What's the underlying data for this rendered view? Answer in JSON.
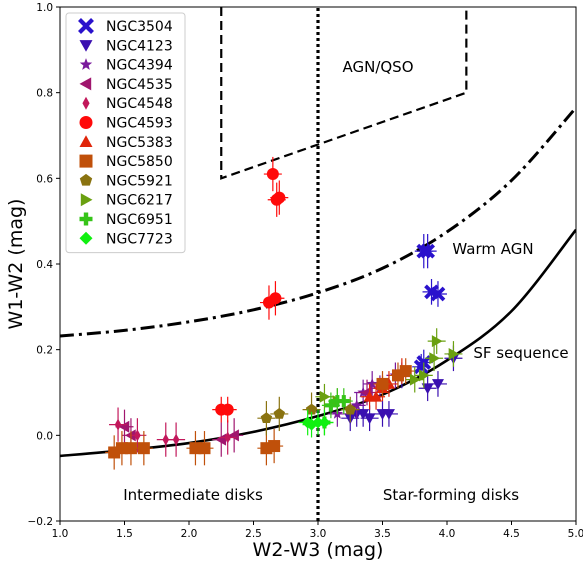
{
  "chart_data": {
    "type": "scatter",
    "xlabel": "W2-W3 (mag)",
    "ylabel": "W1-W2 (mag)",
    "xlim": [
      1.0,
      5.0
    ],
    "ylim": [
      -0.2,
      1.0
    ],
    "xticks": [
      1.0,
      1.5,
      2.0,
      2.5,
      3.0,
      3.5,
      4.0,
      4.5,
      5.0
    ],
    "yticks": [
      -0.2,
      0.0,
      0.2,
      0.4,
      0.6,
      0.8,
      1.0
    ],
    "xtick_labels": [
      "1.0",
      "1.5",
      "2.0",
      "2.5",
      "3.0",
      "3.5",
      "4.0",
      "4.5",
      "5.0"
    ],
    "ytick_labels": [
      "−0.2",
      "0.0",
      "0.2",
      "0.4",
      "0.6",
      "0.8",
      "1.0"
    ],
    "grid": false,
    "legend_position": "top-left",
    "annotations": {
      "agn_qso": "AGN/QSO",
      "warm_agn": "Warm AGN",
      "sf_sequence": "SF sequence",
      "intermediate_disks": "Intermediate disks",
      "star_forming_disks": "Star-forming disks"
    },
    "lines": [
      {
        "role": "agn-qso-wedge",
        "style": "dashed",
        "color": "#000000",
        "points": [
          [
            2.25,
            1.0
          ],
          [
            2.25,
            0.6
          ],
          [
            4.15,
            0.8
          ],
          [
            4.15,
            1.0
          ]
        ]
      },
      {
        "role": "warm-agn-boundary",
        "style": "dashdot",
        "color": "#000000",
        "points": [
          [
            1.0,
            0.232
          ],
          [
            1.5,
            0.245
          ],
          [
            2.0,
            0.265
          ],
          [
            2.5,
            0.293
          ],
          [
            3.0,
            0.333
          ],
          [
            3.5,
            0.39
          ],
          [
            4.0,
            0.475
          ],
          [
            4.5,
            0.595
          ],
          [
            5.0,
            0.765
          ]
        ]
      },
      {
        "role": "sf-sequence",
        "style": "solid",
        "color": "#000000",
        "points": [
          [
            1.0,
            -0.048
          ],
          [
            1.5,
            -0.035
          ],
          [
            2.0,
            -0.018
          ],
          [
            2.5,
            0.008
          ],
          [
            3.0,
            0.045
          ],
          [
            3.5,
            0.095
          ],
          [
            4.0,
            0.175
          ],
          [
            4.5,
            0.29
          ],
          [
            5.0,
            0.48
          ]
        ]
      },
      {
        "role": "disk-divider",
        "style": "dotted",
        "color": "#000000",
        "points": [
          [
            3.0,
            -0.2
          ],
          [
            3.0,
            1.0
          ]
        ]
      }
    ],
    "series": [
      {
        "name": "NGC3504",
        "marker": "x",
        "color": "#2a12cc",
        "points": [
          [
            3.82,
            0.43,
            0.04
          ],
          [
            3.85,
            0.43,
            0.04
          ],
          [
            3.88,
            0.335,
            0.03
          ],
          [
            3.93,
            0.33,
            0.03
          ],
          [
            3.8,
            0.16,
            0.03
          ],
          [
            3.82,
            0.17,
            0.03
          ]
        ]
      },
      {
        "name": "NGC4123",
        "marker": "triangle-down",
        "color": "#3a0fb0",
        "points": [
          [
            3.25,
            0.04,
            0.03
          ],
          [
            3.3,
            0.05,
            0.03
          ],
          [
            3.35,
            0.05,
            0.03
          ],
          [
            3.4,
            0.04,
            0.03
          ],
          [
            3.5,
            0.05,
            0.03
          ],
          [
            3.55,
            0.05,
            0.03
          ],
          [
            3.65,
            0.14,
            0.03
          ],
          [
            3.85,
            0.11,
            0.03
          ],
          [
            3.93,
            0.12,
            0.03
          ],
          [
            4.05,
            0.18,
            0.03
          ]
        ]
      },
      {
        "name": "NGC4394",
        "marker": "star",
        "color": "#7a1a9c",
        "points": [
          [
            3.15,
            0.05,
            0.03
          ],
          [
            3.3,
            0.07,
            0.03
          ],
          [
            3.35,
            0.1,
            0.03
          ],
          [
            3.42,
            0.12,
            0.03
          ],
          [
            3.48,
            0.11,
            0.03
          ],
          [
            3.6,
            0.14,
            0.03
          ]
        ]
      },
      {
        "name": "NGC4535",
        "marker": "triangle-left",
        "color": "#a0166e",
        "points": [
          [
            1.5,
            0.02,
            0.04
          ],
          [
            1.55,
            0.0,
            0.04
          ],
          [
            2.25,
            -0.01,
            0.04
          ],
          [
            2.35,
            0.0,
            0.04
          ],
          [
            3.38,
            0.1,
            0.03
          ]
        ]
      },
      {
        "name": "NGC4548",
        "marker": "thin-diamond",
        "color": "#c2185b",
        "points": [
          [
            1.45,
            0.025,
            0.04
          ],
          [
            1.6,
            0.0,
            0.04
          ],
          [
            1.82,
            -0.01,
            0.04
          ],
          [
            1.9,
            -0.01,
            0.04
          ],
          [
            2.3,
            -0.005,
            0.04
          ]
        ]
      },
      {
        "name": "NGC4593",
        "marker": "circle",
        "color": "#ff0a0a",
        "points": [
          [
            2.25,
            0.06,
            0.03
          ],
          [
            2.3,
            0.06,
            0.03
          ],
          [
            2.62,
            0.31,
            0.04
          ],
          [
            2.67,
            0.32,
            0.04
          ]
        ]
      },
      {
        "name": "NGC5383",
        "marker": "triangle-up",
        "color": "#e0250a",
        "points": [
          [
            3.4,
            0.09,
            0.03
          ],
          [
            3.45,
            0.09,
            0.03
          ],
          [
            3.5,
            0.11,
            0.03
          ],
          [
            3.55,
            0.12,
            0.03
          ],
          [
            3.65,
            0.15,
            0.03
          ]
        ]
      },
      {
        "name": "NGC5850",
        "marker": "square",
        "color": "#c0500a",
        "points": [
          [
            1.42,
            -0.04,
            0.04
          ],
          [
            1.48,
            -0.03,
            0.04
          ],
          [
            1.55,
            -0.03,
            0.04
          ],
          [
            1.65,
            -0.03,
            0.04
          ],
          [
            2.05,
            -0.03,
            0.04
          ],
          [
            2.12,
            -0.03,
            0.04
          ],
          [
            2.6,
            -0.03,
            0.04
          ],
          [
            2.66,
            -0.025,
            0.04
          ],
          [
            3.5,
            0.12,
            0.03
          ],
          [
            3.62,
            0.14,
            0.03
          ],
          [
            3.68,
            0.15,
            0.03
          ]
        ]
      },
      {
        "name": "NGC5921",
        "marker": "pentagon",
        "color": "#8a7310",
        "points": [
          [
            2.6,
            0.04,
            0.04
          ],
          [
            2.7,
            0.05,
            0.04
          ],
          [
            2.95,
            0.06,
            0.04
          ],
          [
            3.25,
            0.06,
            0.03
          ]
        ]
      },
      {
        "name": "NGC6217",
        "marker": "triangle-right",
        "color": "#6aa010",
        "points": [
          [
            3.05,
            0.09,
            0.03
          ],
          [
            3.15,
            0.08,
            0.03
          ],
          [
            3.75,
            0.13,
            0.03
          ],
          [
            3.82,
            0.14,
            0.03
          ],
          [
            3.9,
            0.18,
            0.03
          ],
          [
            3.92,
            0.22,
            0.03
          ],
          [
            4.05,
            0.19,
            0.03
          ]
        ]
      },
      {
        "name": "NGC6951",
        "marker": "plus",
        "color": "#36c418",
        "points": [
          [
            3.05,
            0.03,
            0.03
          ],
          [
            3.1,
            0.07,
            0.03
          ],
          [
            3.15,
            0.08,
            0.03
          ],
          [
            3.2,
            0.08,
            0.03
          ]
        ]
      },
      {
        "name": "NGC7723",
        "marker": "diamond",
        "color": "#10f010",
        "points": [
          [
            2.92,
            0.03,
            0.03
          ],
          [
            2.95,
            0.025,
            0.03
          ],
          [
            3.0,
            0.03,
            0.03
          ],
          [
            3.05,
            0.03,
            0.03
          ]
        ]
      }
    ],
    "outliers": [
      {
        "series": "NGC4593",
        "points": [
          [
            2.65,
            0.61,
            0.04
          ],
          [
            2.7,
            0.555,
            0.04
          ],
          [
            2.68,
            0.55,
            0.04
          ]
        ]
      }
    ]
  }
}
